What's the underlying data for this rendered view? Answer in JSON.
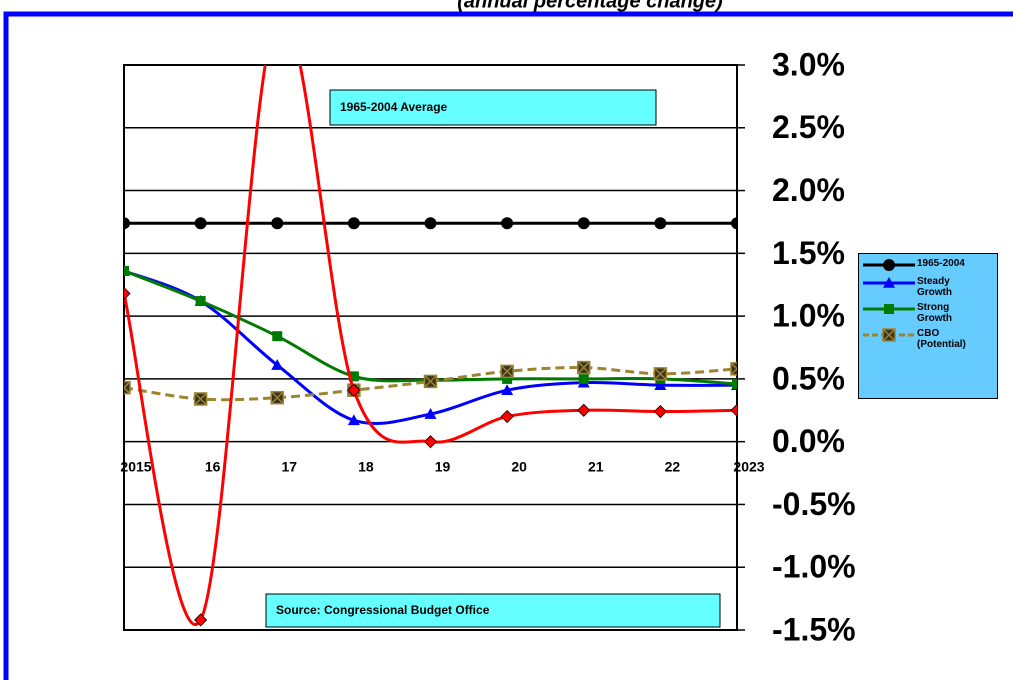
{
  "chart_data": {
    "type": "line",
    "subtitle": "(annual percentage change)",
    "categories": [
      "2015",
      "16",
      "17",
      "18",
      "19",
      "20",
      "21",
      "22",
      "2023"
    ],
    "series": [
      {
        "name": "1965-2004",
        "color": "#000000",
        "marker": "circle",
        "values": [
          1.74,
          1.74,
          1.74,
          1.74,
          1.74,
          1.74,
          1.74,
          1.74,
          1.74
        ]
      },
      {
        "name": "Steady Growth",
        "color": "#0000ff",
        "marker": "triangle",
        "values": [
          1.36,
          1.12,
          0.61,
          0.17,
          0.22,
          0.41,
          0.47,
          0.45,
          0.45
        ]
      },
      {
        "name": "Strong Growth",
        "color": "#007a00",
        "marker": "square",
        "values": [
          1.36,
          1.12,
          0.84,
          0.52,
          0.49,
          0.5,
          0.5,
          0.5,
          0.46
        ]
      },
      {
        "name": "CBO (Potential)",
        "color": "#9c8430",
        "marker": "xsquare",
        "dashed": true,
        "values": [
          0.43,
          0.34,
          0.35,
          0.41,
          0.48,
          0.56,
          0.59,
          0.54,
          0.58
        ]
      },
      {
        "color": "#ff0000",
        "marker": "diamond",
        "values": [
          1.18,
          -1.42,
          3.4,
          0.41,
          0.0,
          0.2,
          0.25,
          0.24,
          0.25
        ]
      }
    ],
    "ylim": [
      -1.5,
      3.0
    ],
    "yticks": [
      {
        "value": -1.5,
        "label": "-1.5%"
      },
      {
        "value": -1.0,
        "label": "-1.0%"
      },
      {
        "value": -0.5,
        "label": "-0.5%"
      },
      {
        "value": 0,
        "label": "0.0%"
      },
      {
        "value": 0.5,
        "label": "0.5%"
      },
      {
        "value": 1.0,
        "label": "1.0%"
      },
      {
        "value": 1.5,
        "label": "1.5%"
      },
      {
        "value": 2.0,
        "label": "2.0%"
      },
      {
        "value": 2.5,
        "label": "2.5%"
      },
      {
        "value": 3.0,
        "label": "3.0%"
      }
    ],
    "grid": true,
    "legend": "right",
    "annotations": [
      "1965-2004  Average",
      "Source:  Congressional  Budget Office"
    ]
  }
}
